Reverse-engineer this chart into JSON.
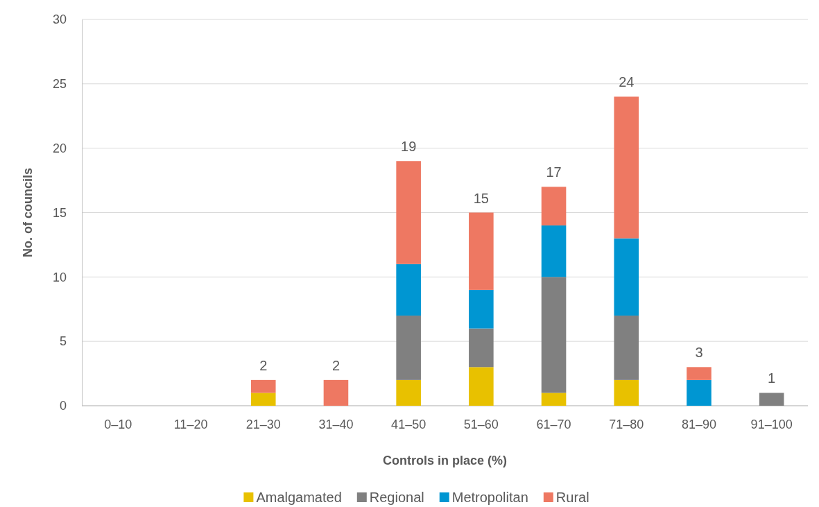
{
  "chart_data": {
    "type": "bar",
    "stacked": true,
    "xlabel": "Controls in place (%)",
    "ylabel": "No. of councils",
    "categories": [
      "0–10",
      "11–20",
      "21–30",
      "31–40",
      "41–50",
      "51–60",
      "61–70",
      "71–80",
      "81–90",
      "91–100"
    ],
    "series": [
      {
        "name": "Amalgamated",
        "color": "#e8c100",
        "values": [
          0,
          0,
          1,
          0,
          2,
          3,
          1,
          2,
          0,
          0
        ]
      },
      {
        "name": "Regional",
        "color": "#808080",
        "values": [
          0,
          0,
          0,
          0,
          5,
          3,
          9,
          5,
          0,
          1
        ]
      },
      {
        "name": "Metropolitan",
        "color": "#0096d2",
        "values": [
          0,
          0,
          0,
          0,
          4,
          3,
          4,
          6,
          2,
          0
        ]
      },
      {
        "name": "Rural",
        "color": "#ee7862",
        "values": [
          0,
          0,
          1,
          2,
          8,
          6,
          3,
          11,
          1,
          0
        ]
      }
    ],
    "totals": [
      null,
      null,
      "2",
      "2",
      "19",
      "15",
      "17",
      "24",
      "3",
      "1"
    ],
    "ylim": [
      0,
      30
    ],
    "yticks": [
      0,
      5,
      10,
      15,
      20,
      25,
      30
    ],
    "grid": "y",
    "legend": "bottom"
  }
}
